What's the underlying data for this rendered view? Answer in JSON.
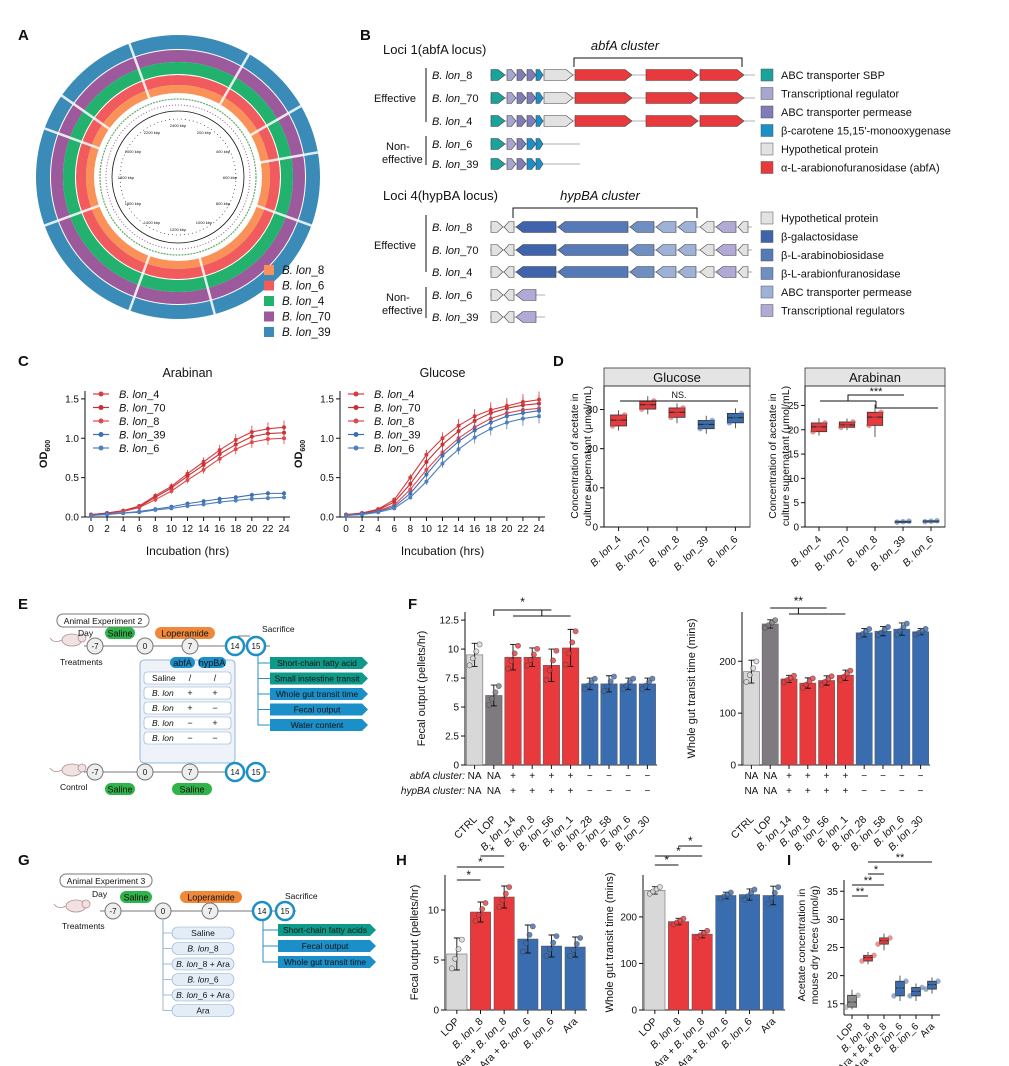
{
  "panel_labels": [
    "A",
    "B",
    "C",
    "D",
    "E",
    "F",
    "G",
    "H",
    "I"
  ],
  "colors": {
    "red": "#e8393d",
    "blue": "#3a6cb0",
    "grey": "#8c8c8c",
    "lightgrey": "#dcdcdc",
    "teal": "#1aa39a",
    "green": "#2fb34a",
    "orange": "#f0883a",
    "tealdark": "#0e9a8a",
    "cyan": "#1b8fc7",
    "ctrlgrey": "#d8d8d8",
    "loppurple": "#7f7a7f"
  },
  "panelA": {
    "ring_labels": [
      "2400 kbp",
      "200 kbp",
      "400 kbp",
      "600 kbp",
      "800 kbp",
      "1000 kbp",
      "1200 kbp",
      "1400 kbp",
      "1600 kbp",
      "1800 kbp",
      "2000 kbp",
      "2200 kbp"
    ],
    "legend": [
      {
        "label": "B. lon_8",
        "color": "#f99159"
      },
      {
        "label": "B. lon_6",
        "color": "#f25b5e"
      },
      {
        "label": "B. lon_4",
        "color": "#22b26d"
      },
      {
        "label": "B. lon_70",
        "color": "#9c5a9c"
      },
      {
        "label": "B. lon_39",
        "color": "#3a8bb8"
      }
    ]
  },
  "panelB": {
    "loci1_title": "Loci 1(abfA locus)",
    "cluster1": "abfA cluster",
    "loci4_title": "Loci 4(hypBA locus)",
    "cluster4": "hypBA cluster",
    "effective": "Effective",
    "noneffective1": "Non-",
    "noneffective2": "effective",
    "strains1": [
      "B. lon_8",
      "B. lon_70",
      "B. lon_4",
      "B. lon_6",
      "B. lon_39"
    ],
    "strains4": [
      "B. lon_8",
      "B. lon_70",
      "B. lon_4",
      "B. lon_6",
      "B. lon_39"
    ],
    "legend1": [
      {
        "label": "ABC transporter SBP",
        "color": "#1aa39a"
      },
      {
        "label": "Transcriptional regulator",
        "color": "#a9a5d1"
      },
      {
        "label": "ABC transporter permease",
        "color": "#7f7cb8"
      },
      {
        "label": "β-carotene 15,15'-monooxygenase",
        "color": "#1b8fc7"
      },
      {
        "label": "Hypothetical protein",
        "color": "#e2e2e2"
      },
      {
        "label": "α-L-arabionofuranosidase (abfA)",
        "color": "#e8393d"
      }
    ],
    "legend4": [
      {
        "label": "Hypothetical protein",
        "color": "#e2e2e2"
      },
      {
        "label": "β-galactosidase",
        "color": "#3f63ad"
      },
      {
        "label": "β-L-arabinobiosidase",
        "color": "#5679b8"
      },
      {
        "label": "β-L-arabionfuranosidase",
        "color": "#6f8fc2"
      },
      {
        "label": "ABC transporter permease",
        "color": "#9db2d6"
      },
      {
        "label": "Transcriptional regulators",
        "color": "#b3a9d6"
      }
    ]
  },
  "panelE": {
    "title": "Animal Experiment 2",
    "day": "Day",
    "treatments": "Treatments",
    "control": "Control",
    "saline": "Saline",
    "loperamide": "Loperamide",
    "sacrifice": "Sacrifice",
    "days": [
      "-7",
      "0",
      "7",
      "14",
      "15"
    ],
    "abfA": "abfA",
    "hypBA": "hypBA",
    "rows": [
      [
        "Saline",
        "/",
        "/"
      ],
      [
        "B. lon",
        "+",
        "+"
      ],
      [
        "B. lon",
        "+",
        "−"
      ],
      [
        "B. lon",
        "−",
        "+"
      ],
      [
        "B. lon",
        "−",
        "−"
      ]
    ],
    "outputs": [
      "Short-chain fatty acid",
      "Small instestine transit",
      "Whole gut transit time",
      "Fecal output",
      "Water content"
    ]
  },
  "panelG": {
    "title": "Animal Experiment 3",
    "day": "Day",
    "treatments": "Treatments",
    "saline": "Saline",
    "loperamide": "Loperamide",
    "sacrifice": "Sacrifice",
    "days": [
      "-7",
      "0",
      "7",
      "14",
      "15"
    ],
    "groups": [
      "Saline",
      "B. lon_8",
      "B. lon_8 + Ara",
      "B. lon_6",
      "B. lon_6 + Ara",
      "Ara"
    ],
    "outputs": [
      "Short-chain fatty acids",
      "Fecal output",
      "Whole gut transit time"
    ]
  },
  "panelF": {
    "abfA_label": "abfA cluster:",
    "hypBA_label": "hypBA cluster:",
    "abfA": [
      "NA",
      "NA",
      "+",
      "+",
      "+",
      "+",
      "−",
      "−",
      "−",
      "−"
    ],
    "hypBA": [
      "NA",
      "NA",
      "+",
      "+",
      "+",
      "+",
      "−",
      "−",
      "−",
      "−"
    ]
  },
  "chart_data": [
    {
      "id": "C1",
      "type": "line",
      "title": "Arabinan",
      "xlabel": "Incubation (hrs)",
      "ylabel": "OD600",
      "ylim": [
        0,
        1.6
      ],
      "yticks": [
        0,
        0.5,
        1,
        1.5
      ],
      "x": [
        0,
        2,
        4,
        6,
        8,
        10,
        12,
        14,
        16,
        18,
        20,
        22,
        24
      ],
      "series": [
        {
          "name": "B. lon_4",
          "color": "#d93a3d",
          "values": [
            0.03,
            0.05,
            0.08,
            0.14,
            0.27,
            0.39,
            0.55,
            0.7,
            0.85,
            0.98,
            1.08,
            1.12,
            1.14
          ]
        },
        {
          "name": "B. lon_70",
          "color": "#c72f33",
          "values": [
            0.03,
            0.05,
            0.08,
            0.13,
            0.25,
            0.37,
            0.52,
            0.66,
            0.8,
            0.92,
            1.02,
            1.06,
            1.07
          ]
        },
        {
          "name": "B. lon_8",
          "color": "#e0484b",
          "values": [
            0.02,
            0.04,
            0.07,
            0.12,
            0.22,
            0.33,
            0.47,
            0.6,
            0.74,
            0.86,
            0.95,
            0.99,
            1.0
          ]
        },
        {
          "name": "B. lon_39",
          "color": "#3d6fb2",
          "values": [
            0.02,
            0.04,
            0.05,
            0.07,
            0.1,
            0.13,
            0.17,
            0.2,
            0.23,
            0.25,
            0.28,
            0.3,
            0.3
          ]
        },
        {
          "name": "B. lon_6",
          "color": "#4e7fc0",
          "values": [
            0.02,
            0.03,
            0.05,
            0.06,
            0.09,
            0.11,
            0.14,
            0.16,
            0.19,
            0.21,
            0.23,
            0.24,
            0.25
          ]
        }
      ]
    },
    {
      "id": "C2",
      "type": "line",
      "title": "Glucose",
      "xlabel": "Incubation (hrs)",
      "ylabel": "OD600",
      "ylim": [
        0,
        1.6
      ],
      "yticks": [
        0,
        0.5,
        1,
        1.5
      ],
      "x": [
        0,
        2,
        4,
        6,
        8,
        10,
        12,
        14,
        16,
        18,
        20,
        22,
        24
      ],
      "series": [
        {
          "name": "B. lon_4",
          "color": "#d93a3d",
          "values": [
            0.03,
            0.05,
            0.1,
            0.22,
            0.5,
            0.79,
            1.0,
            1.16,
            1.28,
            1.36,
            1.41,
            1.46,
            1.49
          ]
        },
        {
          "name": "B. lon_70",
          "color": "#c72f33",
          "values": [
            0.03,
            0.05,
            0.09,
            0.19,
            0.42,
            0.7,
            0.92,
            1.09,
            1.22,
            1.32,
            1.38,
            1.42,
            1.44
          ]
        },
        {
          "name": "B. lon_8",
          "color": "#e0484b",
          "values": [
            0.02,
            0.04,
            0.08,
            0.15,
            0.35,
            0.6,
            0.82,
            1.0,
            1.14,
            1.25,
            1.32,
            1.36,
            1.38
          ]
        },
        {
          "name": "B. lon_39",
          "color": "#3d6fb2",
          "values": [
            0.02,
            0.04,
            0.07,
            0.13,
            0.3,
            0.54,
            0.78,
            0.96,
            1.1,
            1.2,
            1.28,
            1.32,
            1.35
          ]
        },
        {
          "name": "B. lon_6",
          "color": "#4e7fc0",
          "values": [
            0.02,
            0.03,
            0.06,
            0.11,
            0.25,
            0.45,
            0.68,
            0.86,
            1.01,
            1.12,
            1.2,
            1.25,
            1.28
          ]
        }
      ]
    },
    {
      "id": "D1",
      "type": "box",
      "title": "Glucose",
      "ylabel": "Concentration of acetate in culture supernatant (μmol/mL)",
      "ylim": [
        0,
        36
      ],
      "yticks": [
        0,
        10,
        20,
        30
      ],
      "categories": [
        "B. lon_4",
        "B. lon_70",
        "B. lon_8",
        "B. lon_39",
        "B. lon_6"
      ],
      "colors": [
        "#e8393d",
        "#e8393d",
        "#e8393d",
        "#3a6cb0",
        "#3a6cb0"
      ],
      "boxes": [
        [
          24.6,
          25.8,
          27.3,
          28.6,
          29.8
        ],
        [
          28.8,
          30.1,
          31.2,
          32.2,
          33.4
        ],
        [
          26.5,
          28.0,
          29.3,
          30.4,
          31.6
        ],
        [
          23.8,
          25.1,
          26.2,
          27.2,
          28.4
        ],
        [
          25.2,
          26.6,
          27.9,
          29.0,
          30.3
        ]
      ],
      "annotation": "NS."
    },
    {
      "id": "D2",
      "type": "box",
      "title": "Arabinan",
      "ylabel": "Concentration of acetate in culture supernatant (μmol/mL)",
      "ylim": [
        0,
        29
      ],
      "yticks": [
        0,
        5,
        10,
        15,
        20,
        25
      ],
      "categories": [
        "B. lon_4",
        "B. lon_70",
        "B. lon_8",
        "B. lon_39",
        "B. lon_6"
      ],
      "colors": [
        "#e8393d",
        "#e8393d",
        "#e8393d",
        "#3a6cb0",
        "#3a6cb0"
      ],
      "boxes": [
        [
          18.8,
          19.6,
          20.6,
          21.4,
          22.4
        ],
        [
          19.9,
          20.5,
          21.0,
          21.6,
          22.3
        ],
        [
          18.5,
          20.9,
          22.6,
          23.6,
          25.2
        ],
        [
          0.9,
          1.0,
          1.1,
          1.2,
          1.3
        ],
        [
          1.0,
          1.1,
          1.2,
          1.3,
          1.4
        ]
      ],
      "annotation": "***"
    },
    {
      "id": "F1",
      "type": "bar",
      "ylabel": "Fecal output (pellets/hr)",
      "ylim": [
        0,
        13.2
      ],
      "yticks": [
        0,
        2.5,
        5,
        7.5,
        10,
        12.5
      ],
      "categories": [
        "CTRL",
        "LOP",
        "B. lon_14",
        "B. lon_8",
        "B. lon_56",
        "B. lon_1",
        "B. lon_28",
        "B. lon_58",
        "B. lon_6",
        "B. lon_30"
      ],
      "values": [
        9.5,
        6.0,
        9.3,
        9.3,
        8.6,
        10.1,
        7.0,
        7.0,
        7.0,
        7.0
      ],
      "errors": [
        1.0,
        0.9,
        1.1,
        0.8,
        1.4,
        1.6,
        0.5,
        0.7,
        0.5,
        0.5
      ],
      "colors": [
        "#d8d8d8",
        "#7f7a7f",
        "#e8393d",
        "#e8393d",
        "#e8393d",
        "#e8393d",
        "#3a6cb0",
        "#3a6cb0",
        "#3a6cb0",
        "#3a6cb0"
      ],
      "annotation": "*"
    },
    {
      "id": "F2",
      "type": "bar",
      "ylabel": "Whole gut transit time (mins)",
      "ylim": [
        0,
        295
      ],
      "yticks": [
        0,
        100,
        200
      ],
      "categories": [
        "CTRL",
        "LOP",
        "B. lon_14",
        "B. lon_8",
        "B. lon_56",
        "B. lon_1",
        "B. lon_28",
        "B. lon_58",
        "B. lon_6",
        "B. lon_30"
      ],
      "values": [
        180,
        272,
        166,
        158,
        163,
        173,
        255,
        258,
        262,
        257
      ],
      "errors": [
        22,
        8,
        7,
        10,
        9,
        10,
        8,
        9,
        12,
        6
      ],
      "colors": [
        "#d8d8d8",
        "#7f7a7f",
        "#e8393d",
        "#e8393d",
        "#e8393d",
        "#e8393d",
        "#3a6cb0",
        "#3a6cb0",
        "#3a6cb0",
        "#3a6cb0"
      ],
      "annotation": "**"
    },
    {
      "id": "H1",
      "type": "bar",
      "ylabel": "Fecal output (pellets/hr)",
      "ylim": [
        0,
        13.5
      ],
      "yticks": [
        0,
        5,
        10
      ],
      "categories": [
        "LOP",
        "B. lon_8",
        "Ara + B. lon_8",
        "Ara + B. lon_6",
        "B. lon_6",
        "Ara"
      ],
      "values": [
        5.6,
        9.8,
        11.3,
        7.1,
        6.4,
        6.3
      ],
      "errors": [
        1.6,
        1.0,
        1.1,
        1.4,
        1.1,
        1.0
      ],
      "colors": [
        "#d8d8d8",
        "#e8393d",
        "#e8393d",
        "#3a6cb0",
        "#3a6cb0",
        "#3a6cb0"
      ],
      "annotation": "*"
    },
    {
      "id": "H2",
      "type": "bar",
      "ylabel": "Whole gut transit time (mins)",
      "ylim": [
        0,
        290
      ],
      "yticks": [
        0,
        100,
        200
      ],
      "categories": [
        "LOP",
        "B. lon_8",
        "Ara + B. lon_8",
        "Ara + B. lon_6",
        "B. lon_6",
        "Ara"
      ],
      "values": [
        257,
        190,
        163,
        246,
        248,
        246
      ],
      "errors": [
        8,
        7,
        8,
        7,
        12,
        20
      ],
      "colors": [
        "#d8d8d8",
        "#e8393d",
        "#e8393d",
        "#3a6cb0",
        "#3a6cb0",
        "#3a6cb0"
      ],
      "annotation": "*"
    },
    {
      "id": "I",
      "type": "box",
      "ylabel": "Acetate concentration in mouse dry feces (μmol/g)",
      "ylim": [
        13,
        37
      ],
      "yticks": [
        15,
        20,
        25,
        30,
        35
      ],
      "categories": [
        "LOP",
        "B. lon_8",
        "Ara + B. lon_8",
        "Ara + B. lon_6",
        "B. lon_6",
        "Ara"
      ],
      "colors": [
        "#8c8c8c",
        "#e8393d",
        "#e8393d",
        "#3a6cb0",
        "#3a6cb0",
        "#3a6cb0"
      ],
      "boxes": [
        [
          14.0,
          14.4,
          15.3,
          16.5,
          17.5
        ],
        [
          22.0,
          22.6,
          23.2,
          23.6,
          24.2
        ],
        [
          24.5,
          25.6,
          26.2,
          26.7,
          27.5
        ],
        [
          15.5,
          16.4,
          17.8,
          19.0,
          20.0
        ],
        [
          15.5,
          16.4,
          17.2,
          17.9,
          18.6
        ],
        [
          16.8,
          17.6,
          18.4,
          19.0,
          19.7
        ]
      ],
      "annotation": "**"
    }
  ]
}
